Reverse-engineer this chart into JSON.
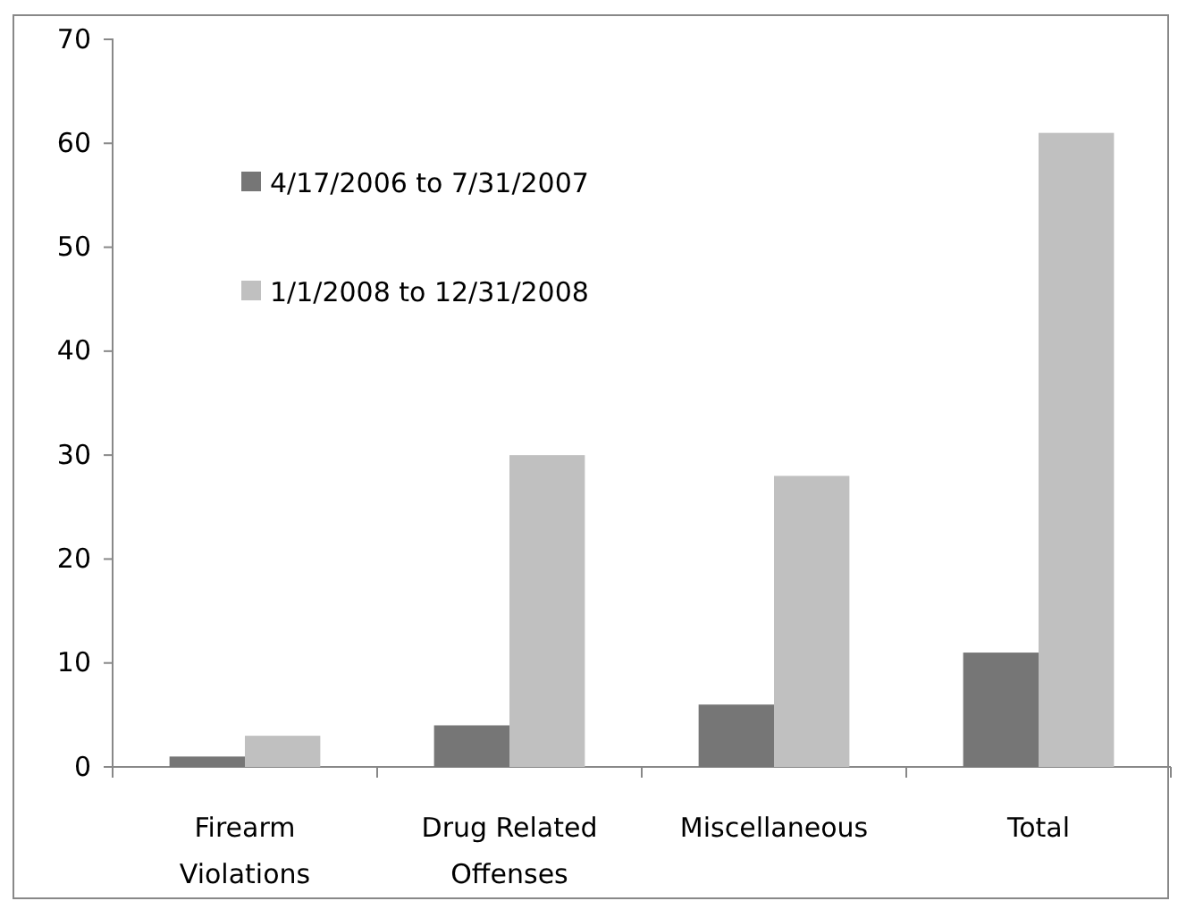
{
  "chart_data": {
    "type": "bar",
    "categories": [
      "Firearm Violations",
      "Drug Related Offenses",
      "Miscellaneous",
      "Total"
    ],
    "series": [
      {
        "name": "4/17/2006 to 7/31/2007",
        "color": "#767676",
        "values": [
          1,
          4,
          6,
          11
        ]
      },
      {
        "name": "1/1/2008 to 12/31/2008",
        "color": "#c0c0c0",
        "values": [
          3,
          30,
          28,
          61
        ]
      }
    ],
    "ylim": [
      0,
      70
    ],
    "yticks": [
      0,
      10,
      20,
      30,
      40,
      50,
      60,
      70
    ],
    "grid": false,
    "legend": "top left"
  }
}
